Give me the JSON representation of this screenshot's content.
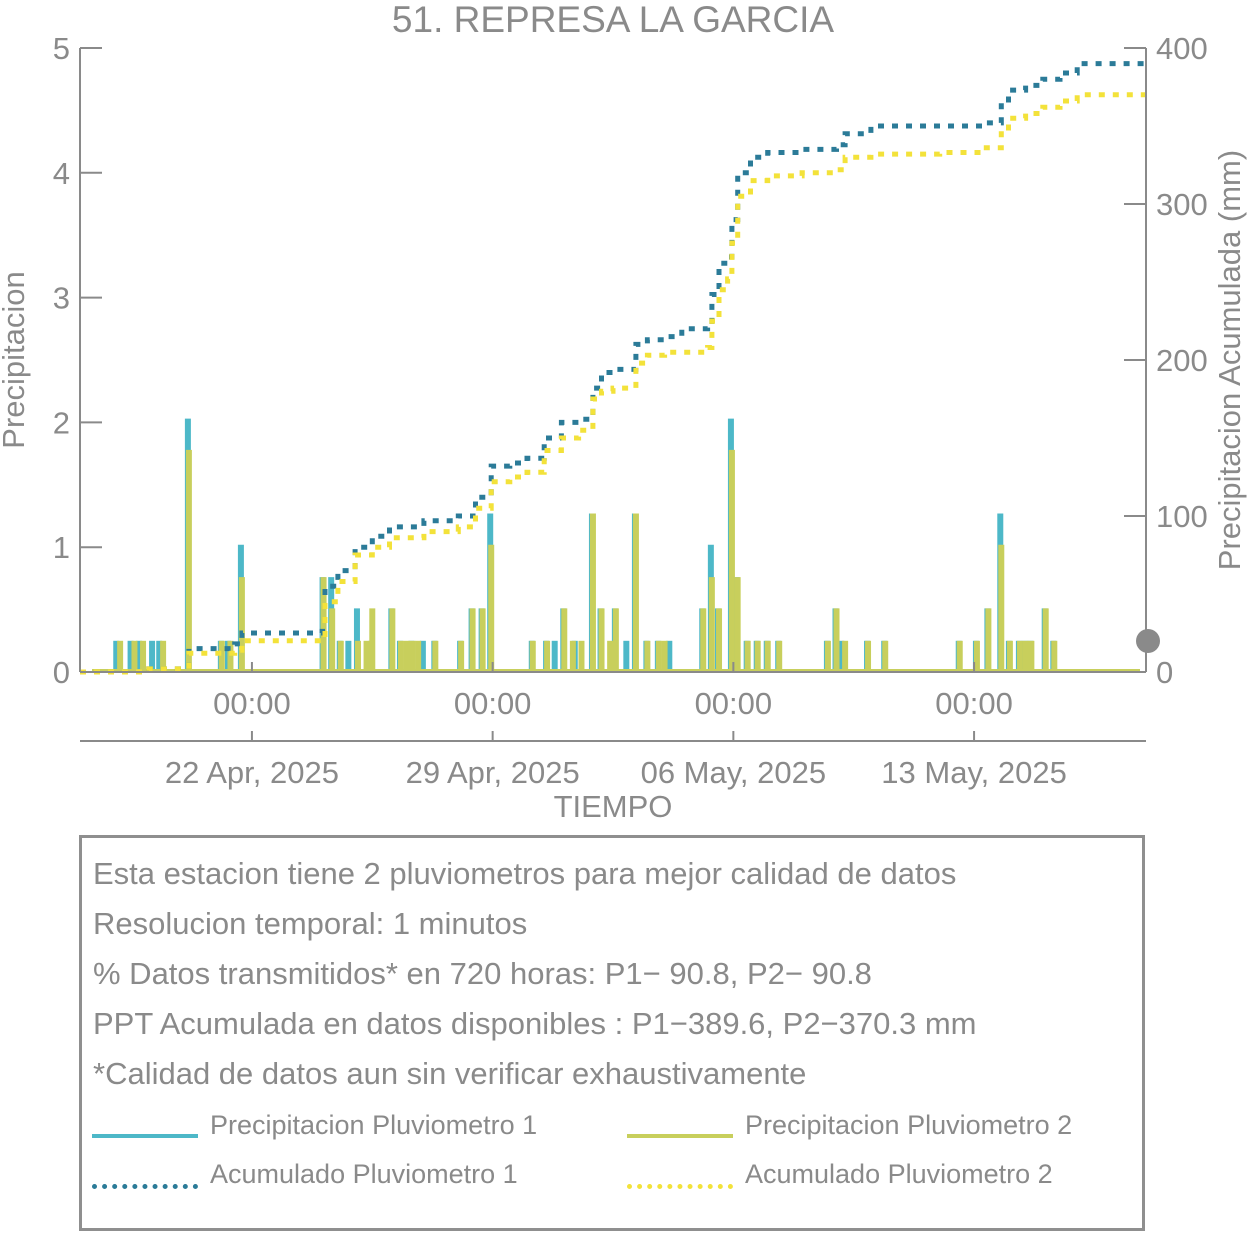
{
  "chart_data": {
    "type": "bar+line",
    "title": "51. REPRESA LA GARCIA",
    "xlabel": "TIEMPO",
    "ylabel_left": "Precipitacion",
    "ylabel_right": "Precipitacion Acumulada (mm)",
    "ylim_left": [
      0,
      5
    ],
    "ylim_right": [
      0,
      400
    ],
    "yticks_left": [
      "0",
      "1",
      "2",
      "3",
      "4",
      "5"
    ],
    "yticks_right": [
      "0",
      "100",
      "200",
      "300",
      "400"
    ],
    "x_range_days": [
      "2025-04-17",
      "2025-05-18"
    ],
    "xticks": [
      {
        "date": "2025-04-22",
        "time_label": "00:00",
        "date_label": "22 Apr, 2025"
      },
      {
        "date": "2025-04-29",
        "time_label": "00:00",
        "date_label": "29 Apr, 2025"
      },
      {
        "date": "2025-05-06",
        "time_label": "00:00",
        "date_label": "06 May, 2025"
      },
      {
        "date": "2025-05-13",
        "time_label": "00:00",
        "date_label": "13 May, 2025"
      }
    ],
    "legend_placement": "bottom",
    "grid": false,
    "series": [
      {
        "name": "Precipitacion Pluviometro 1",
        "kind": "bar",
        "axis": "left",
        "color": "#4db8c8",
        "points": [
          [
            "2025-04-18 02:00",
            0.25
          ],
          [
            "2025-04-18 12:00",
            0.25
          ],
          [
            "2025-04-18 18:00",
            0.25
          ],
          [
            "2025-04-19 03:00",
            0.25
          ],
          [
            "2025-04-19 08:00",
            0.25
          ],
          [
            "2025-04-20 04:00",
            2.03
          ],
          [
            "2025-04-21 03:00",
            0.25
          ],
          [
            "2025-04-21 08:00",
            0.25
          ],
          [
            "2025-04-21 17:00",
            1.02
          ],
          [
            "2025-04-24 02:00",
            0.76
          ],
          [
            "2025-04-24 08:00",
            0.76
          ],
          [
            "2025-04-24 14:00",
            0.25
          ],
          [
            "2025-04-24 20:00",
            0.25
          ],
          [
            "2025-04-25 02:00",
            0.51
          ],
          [
            "2025-04-25 12:00",
            0.25
          ],
          [
            "2025-04-26 02:00",
            0.51
          ],
          [
            "2025-04-26 08:00",
            0.25
          ],
          [
            "2025-04-26 16:00",
            0.25
          ],
          [
            "2025-04-27 00:00",
            0.25
          ],
          [
            "2025-04-27 08:00",
            0.25
          ],
          [
            "2025-04-28 02:00",
            0.25
          ],
          [
            "2025-04-28 10:00",
            0.51
          ],
          [
            "2025-04-28 17:00",
            0.51
          ],
          [
            "2025-04-28 23:00",
            1.27
          ],
          [
            "2025-04-30 04:00",
            0.25
          ],
          [
            "2025-04-30 14:00",
            0.25
          ],
          [
            "2025-04-30 20:00",
            0.25
          ],
          [
            "2025-05-01 02:00",
            0.51
          ],
          [
            "2025-05-01 10:00",
            0.25
          ],
          [
            "2025-05-01 22:00",
            1.27
          ],
          [
            "2025-05-02 04:00",
            0.51
          ],
          [
            "2025-05-02 14:00",
            0.51
          ],
          [
            "2025-05-02 22:00",
            0.25
          ],
          [
            "2025-05-03 04:00",
            1.27
          ],
          [
            "2025-05-03 12:00",
            0.25
          ],
          [
            "2025-05-03 20:00",
            0.25
          ],
          [
            "2025-05-04 04:00",
            0.25
          ],
          [
            "2025-05-05 03:00",
            0.51
          ],
          [
            "2025-05-05 09:00",
            1.02
          ],
          [
            "2025-05-05 14:00",
            0.51
          ],
          [
            "2025-05-05 23:00",
            2.03
          ],
          [
            "2025-05-06 03:00",
            0.76
          ],
          [
            "2025-05-06 10:00",
            0.25
          ],
          [
            "2025-05-06 17:00",
            0.25
          ],
          [
            "2025-05-07 00:00",
            0.25
          ],
          [
            "2025-05-07 08:00",
            0.25
          ],
          [
            "2025-05-08 18:00",
            0.25
          ],
          [
            "2025-05-09 00:00",
            0.51
          ],
          [
            "2025-05-09 04:00",
            0.25
          ],
          [
            "2025-05-09 22:00",
            0.25
          ],
          [
            "2025-05-10 10:00",
            0.25
          ],
          [
            "2025-05-12 14:00",
            0.25
          ],
          [
            "2025-05-13 02:00",
            0.25
          ],
          [
            "2025-05-13 10:00",
            0.51
          ],
          [
            "2025-05-13 19:00",
            1.27
          ],
          [
            "2025-05-14 01:00",
            0.25
          ],
          [
            "2025-05-14 08:00",
            0.25
          ],
          [
            "2025-05-14 12:00",
            0.25
          ],
          [
            "2025-05-14 16:00",
            0.25
          ],
          [
            "2025-05-15 02:00",
            0.51
          ],
          [
            "2025-05-15 08:00",
            0.25
          ]
        ]
      },
      {
        "name": "Precipitacion Pluviometro 2",
        "kind": "bar",
        "axis": "left",
        "color": "#c8cf5c",
        "points": [
          [
            "2025-04-18 04:00",
            0.25
          ],
          [
            "2025-04-18 14:00",
            0.25
          ],
          [
            "2025-04-18 20:00",
            0.25
          ],
          [
            "2025-04-19 10:00",
            0.25
          ],
          [
            "2025-04-20 04:00",
            1.78
          ],
          [
            "2025-04-21 03:00",
            0.25
          ],
          [
            "2025-04-21 09:00",
            0.25
          ],
          [
            "2025-04-21 17:00",
            0.76
          ],
          [
            "2025-04-24 02:00",
            0.76
          ],
          [
            "2025-04-24 08:00",
            0.51
          ],
          [
            "2025-04-24 14:00",
            0.25
          ],
          [
            "2025-04-25 02:00",
            0.25
          ],
          [
            "2025-04-25 08:00",
            0.25
          ],
          [
            "2025-04-25 12:00",
            0.51
          ],
          [
            "2025-04-26 02:00",
            0.51
          ],
          [
            "2025-04-26 08:00",
            0.25
          ],
          [
            "2025-04-26 12:00",
            0.25
          ],
          [
            "2025-04-26 16:00",
            0.25
          ],
          [
            "2025-04-26 20:00",
            0.25
          ],
          [
            "2025-04-27 08:00",
            0.25
          ],
          [
            "2025-04-28 02:00",
            0.25
          ],
          [
            "2025-04-28 10:00",
            0.51
          ],
          [
            "2025-04-28 17:00",
            0.51
          ],
          [
            "2025-04-28 23:00",
            1.02
          ],
          [
            "2025-04-30 04:00",
            0.25
          ],
          [
            "2025-04-30 14:00",
            0.25
          ],
          [
            "2025-05-01 02:00",
            0.51
          ],
          [
            "2025-05-01 08:00",
            0.25
          ],
          [
            "2025-05-01 14:00",
            0.25
          ],
          [
            "2025-05-01 22:00",
            1.27
          ],
          [
            "2025-05-02 04:00",
            0.51
          ],
          [
            "2025-05-02 10:00",
            0.25
          ],
          [
            "2025-05-02 14:00",
            0.51
          ],
          [
            "2025-05-03 04:00",
            1.27
          ],
          [
            "2025-05-03 12:00",
            0.25
          ],
          [
            "2025-05-03 20:00",
            0.25
          ],
          [
            "2025-05-04 00:00",
            0.25
          ],
          [
            "2025-05-05 03:00",
            0.51
          ],
          [
            "2025-05-05 09:00",
            0.76
          ],
          [
            "2025-05-05 14:00",
            0.51
          ],
          [
            "2025-05-05 23:00",
            1.78
          ],
          [
            "2025-05-06 03:00",
            0.76
          ],
          [
            "2025-05-06 10:00",
            0.25
          ],
          [
            "2025-05-06 17:00",
            0.25
          ],
          [
            "2025-05-07 00:00",
            0.25
          ],
          [
            "2025-05-07 08:00",
            0.25
          ],
          [
            "2025-05-08 18:00",
            0.25
          ],
          [
            "2025-05-09 00:00",
            0.51
          ],
          [
            "2025-05-09 06:00",
            0.25
          ],
          [
            "2025-05-09 22:00",
            0.25
          ],
          [
            "2025-05-10 10:00",
            0.25
          ],
          [
            "2025-05-12 14:00",
            0.25
          ],
          [
            "2025-05-13 02:00",
            0.25
          ],
          [
            "2025-05-13 10:00",
            0.51
          ],
          [
            "2025-05-13 19:00",
            1.02
          ],
          [
            "2025-05-14 01:00",
            0.25
          ],
          [
            "2025-05-14 08:00",
            0.25
          ],
          [
            "2025-05-14 12:00",
            0.25
          ],
          [
            "2025-05-14 16:00",
            0.25
          ],
          [
            "2025-05-15 02:00",
            0.51
          ],
          [
            "2025-05-15 08:00",
            0.25
          ]
        ]
      },
      {
        "name": "Acumulado Pluviometro 1",
        "kind": "step-dotted",
        "axis": "right",
        "color": "#2b7b98",
        "points": [
          [
            "2025-04-17 00:00",
            0
          ],
          [
            "2025-04-19 00:00",
            2
          ],
          [
            "2025-04-20 04:00",
            15
          ],
          [
            "2025-04-21 12:00",
            18
          ],
          [
            "2025-04-21 17:00",
            25
          ],
          [
            "2025-04-24 01:00",
            26
          ],
          [
            "2025-04-24 03:00",
            55
          ],
          [
            "2025-04-24 12:00",
            65
          ],
          [
            "2025-04-25 00:00",
            80
          ],
          [
            "2025-04-25 12:00",
            87
          ],
          [
            "2025-04-26 00:00",
            93
          ],
          [
            "2025-04-27 00:00",
            97
          ],
          [
            "2025-04-28 00:00",
            100
          ],
          [
            "2025-04-28 12:00",
            112
          ],
          [
            "2025-04-28 23:00",
            132
          ],
          [
            "2025-04-29 12:00",
            134
          ],
          [
            "2025-04-30 00:00",
            137
          ],
          [
            "2025-04-30 12:00",
            150
          ],
          [
            "2025-05-01 00:00",
            160
          ],
          [
            "2025-05-01 12:00",
            162
          ],
          [
            "2025-05-01 22:00",
            182
          ],
          [
            "2025-05-02 04:00",
            192
          ],
          [
            "2025-05-02 12:00",
            194
          ],
          [
            "2025-05-03 04:00",
            210
          ],
          [
            "2025-05-03 12:00",
            213
          ],
          [
            "2025-05-04 00:00",
            215
          ],
          [
            "2025-05-04 12:00",
            220
          ],
          [
            "2025-05-05 06:00",
            222
          ],
          [
            "2025-05-05 09:00",
            242
          ],
          [
            "2025-05-05 14:00",
            262
          ],
          [
            "2025-05-05 20:00",
            266
          ],
          [
            "2025-05-05 23:00",
            290
          ],
          [
            "2025-05-06 03:00",
            320
          ],
          [
            "2025-05-06 12:00",
            330
          ],
          [
            "2025-05-07 00:00",
            333
          ],
          [
            "2025-05-08 00:00",
            335
          ],
          [
            "2025-05-09 00:00",
            338
          ],
          [
            "2025-05-09 06:00",
            345
          ],
          [
            "2025-05-10 00:00",
            350
          ],
          [
            "2025-05-12 00:00",
            350
          ],
          [
            "2025-05-13 06:00",
            352
          ],
          [
            "2025-05-13 19:00",
            365
          ],
          [
            "2025-05-14 00:00",
            373
          ],
          [
            "2025-05-14 12:00",
            376
          ],
          [
            "2025-05-15 00:00",
            380
          ],
          [
            "2025-05-15 12:00",
            384
          ],
          [
            "2025-05-16 00:00",
            390
          ]
        ]
      },
      {
        "name": "Acumulado Pluviometro 2",
        "kind": "step-dotted",
        "axis": "right",
        "color": "#f3e23a",
        "points": [
          [
            "2025-04-17 00:00",
            0
          ],
          [
            "2025-04-19 00:00",
            2
          ],
          [
            "2025-04-20 04:00",
            12
          ],
          [
            "2025-04-21 12:00",
            14
          ],
          [
            "2025-04-21 17:00",
            20
          ],
          [
            "2025-04-24 01:00",
            21
          ],
          [
            "2025-04-24 03:00",
            45
          ],
          [
            "2025-04-24 12:00",
            58
          ],
          [
            "2025-04-25 00:00",
            75
          ],
          [
            "2025-04-25 12:00",
            80
          ],
          [
            "2025-04-26 00:00",
            86
          ],
          [
            "2025-04-27 00:00",
            90
          ],
          [
            "2025-04-28 00:00",
            93
          ],
          [
            "2025-04-28 12:00",
            105
          ],
          [
            "2025-04-28 23:00",
            122
          ],
          [
            "2025-04-29 12:00",
            125
          ],
          [
            "2025-04-30 00:00",
            128
          ],
          [
            "2025-04-30 12:00",
            142
          ],
          [
            "2025-05-01 00:00",
            150
          ],
          [
            "2025-05-01 12:00",
            155
          ],
          [
            "2025-05-01 22:00",
            175
          ],
          [
            "2025-05-02 04:00",
            180
          ],
          [
            "2025-05-02 12:00",
            182
          ],
          [
            "2025-05-03 04:00",
            198
          ],
          [
            "2025-05-03 12:00",
            203
          ],
          [
            "2025-05-04 00:00",
            205
          ],
          [
            "2025-05-05 06:00",
            208
          ],
          [
            "2025-05-05 09:00",
            225
          ],
          [
            "2025-05-05 14:00",
            245
          ],
          [
            "2025-05-05 20:00",
            252
          ],
          [
            "2025-05-05 23:00",
            275
          ],
          [
            "2025-05-06 03:00",
            305
          ],
          [
            "2025-05-06 12:00",
            315
          ],
          [
            "2025-05-07 00:00",
            318
          ],
          [
            "2025-05-08 00:00",
            320
          ],
          [
            "2025-05-09 00:00",
            322
          ],
          [
            "2025-05-09 06:00",
            330
          ],
          [
            "2025-05-10 00:00",
            332
          ],
          [
            "2025-05-12 00:00",
            333
          ],
          [
            "2025-05-13 06:00",
            336
          ],
          [
            "2025-05-13 19:00",
            345
          ],
          [
            "2025-05-14 00:00",
            355
          ],
          [
            "2025-05-14 12:00",
            358
          ],
          [
            "2025-05-15 00:00",
            362
          ],
          [
            "2025-05-15 12:00",
            366
          ],
          [
            "2025-05-16 00:00",
            370
          ]
        ]
      }
    ]
  },
  "info": {
    "lines": [
      "Esta estacion tiene 2 pluviometros para mejor calidad de datos",
      "Resolucion temporal: 1 minutos",
      "% Datos transmitidos* en 720 horas: P1− 90.8, P2− 90.8",
      "PPT Acumulada en datos disponibles : P1−389.6, P2−370.3 mm",
      "*Calidad de datos aun sin verificar exhaustivamente"
    ]
  },
  "legend": {
    "items": [
      {
        "label": "Precipitacion Pluviometro 1",
        "color": "#4db8c8",
        "style": "solid"
      },
      {
        "label": "Precipitacion Pluviometro 2",
        "color": "#c8cf5c",
        "style": "solid"
      },
      {
        "label": "Acumulado Pluviometro 1",
        "color": "#2b7b98",
        "style": "dotted"
      },
      {
        "label": "Acumulado Pluviometro 2",
        "color": "#f3e23a",
        "style": "dotted"
      }
    ]
  },
  "colors": {
    "axis": "#8a8a8a",
    "status_dot": "#8a8a8a"
  }
}
